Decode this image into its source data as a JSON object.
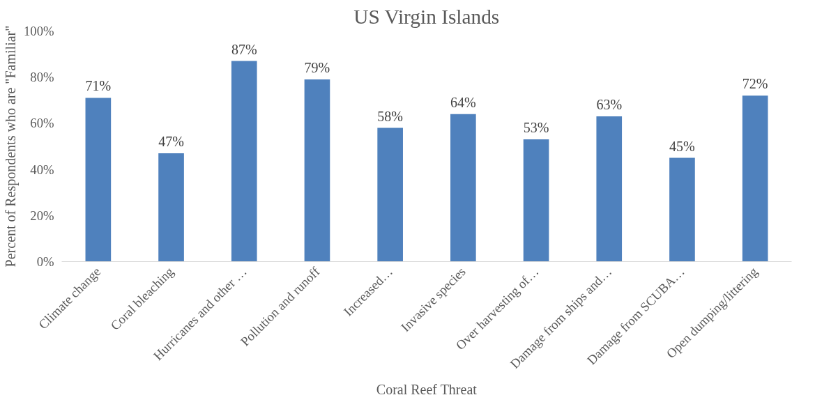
{
  "chart_data": {
    "type": "bar",
    "title": "US Virgin Islands",
    "xlabel": "Coral Reef Threat",
    "ylabel": "Percent of Respondents who are \"Familiar\"",
    "categories": [
      "Climate change",
      "Coral bleaching",
      "Hurricanes and other …",
      "Pollution and runoff",
      "Increased…",
      "Invasive species",
      "Over harvesting of…",
      "Damage from ships and…",
      "Damage from SCUBA…",
      "Open dumping/littering"
    ],
    "values": [
      71,
      47,
      87,
      79,
      58,
      64,
      53,
      63,
      45,
      72
    ],
    "value_labels": [
      "71%",
      "47%",
      "87%",
      "79%",
      "58%",
      "64%",
      "53%",
      "63%",
      "45%",
      "72%"
    ],
    "color": "#4f81bd",
    "ylim": [
      0,
      100
    ],
    "yticks": [
      {
        "value": 0,
        "label": "0%"
      },
      {
        "value": 20,
        "label": "20%"
      },
      {
        "value": 40,
        "label": "40%"
      },
      {
        "value": 60,
        "label": "60%"
      },
      {
        "value": 80,
        "label": "80%"
      },
      {
        "value": 100,
        "label": "100%"
      }
    ],
    "grid": false
  }
}
